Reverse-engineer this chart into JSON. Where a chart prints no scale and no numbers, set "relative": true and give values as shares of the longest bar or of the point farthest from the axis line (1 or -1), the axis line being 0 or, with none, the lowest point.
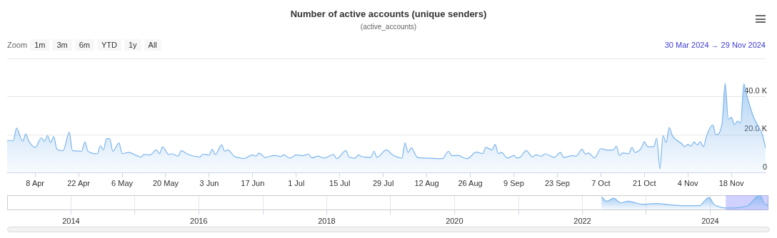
{
  "chart_data": [
    {
      "type": "area",
      "title": "Number of active accounts (unique senders)",
      "subtitle": "(active_accounts)",
      "annotations": [
        "Zoom",
        "1m",
        "3m",
        "6m",
        "YTD",
        "1y",
        "All",
        "30 Mar 2024 → 29 Nov 2024"
      ],
      "x": [
        "2024-03-30",
        "2024-04-01",
        "2024-04-02",
        "2024-04-04",
        "2024-04-05",
        "2024-04-06",
        "2024-04-08",
        "2024-04-10",
        "2024-04-11",
        "2024-04-12",
        "2024-04-13",
        "2024-04-14",
        "2024-04-15",
        "2024-04-17",
        "2024-04-19",
        "2024-04-20",
        "2024-04-23",
        "2024-04-24",
        "2024-04-25",
        "2024-04-28",
        "2024-04-29",
        "2024-04-30",
        "2024-05-01",
        "2024-05-02",
        "2024-05-03",
        "2024-05-05",
        "2024-05-06",
        "2024-05-08",
        "2024-05-12",
        "2024-05-13",
        "2024-05-15",
        "2024-05-17",
        "2024-05-18",
        "2024-05-19",
        "2024-05-21",
        "2024-05-22",
        "2024-05-24",
        "2024-05-25",
        "2024-05-27",
        "2024-05-31",
        "2024-06-01",
        "2024-06-03",
        "2024-06-04",
        "2024-06-05",
        "2024-06-07",
        "2024-06-08",
        "2024-06-09",
        "2024-06-11",
        "2024-06-13",
        "2024-06-14",
        "2024-06-17",
        "2024-06-18",
        "2024-06-19",
        "2024-06-21",
        "2024-06-24",
        "2024-06-26",
        "2024-06-27",
        "2024-06-29",
        "2024-07-01",
        "2024-07-03",
        "2024-07-05",
        "2024-07-06",
        "2024-07-08",
        "2024-07-10",
        "2024-07-13",
        "2024-07-14",
        "2024-07-17",
        "2024-07-18",
        "2024-07-20",
        "2024-07-21",
        "2024-07-22",
        "2024-07-25",
        "2024-07-26",
        "2024-07-27",
        "2024-07-30",
        "2024-08-01",
        "2024-08-04",
        "2024-08-05",
        "2024-08-06",
        "2024-08-07",
        "2024-08-09",
        "2024-08-12",
        "2024-08-17",
        "2024-08-19",
        "2024-08-20",
        "2024-08-22",
        "2024-08-25",
        "2024-08-28",
        "2024-08-30",
        "2024-08-31",
        "2024-09-02",
        "2024-09-03",
        "2024-09-04",
        "2024-09-05",
        "2024-09-07",
        "2024-09-09",
        "2024-09-10",
        "2024-09-11",
        "2024-09-13",
        "2024-09-15",
        "2024-09-16",
        "2024-09-18",
        "2024-09-19",
        "2024-09-22",
        "2024-09-24",
        "2024-09-25",
        "2024-09-28",
        "2024-09-29",
        "2024-10-01",
        "2024-10-02",
        "2024-10-03",
        "2024-10-05",
        "2024-10-07",
        "2024-10-09",
        "2024-10-11",
        "2024-10-12",
        "2024-10-13",
        "2024-10-14",
        "2024-10-16",
        "2024-10-17",
        "2024-10-18",
        "2024-10-20",
        "2024-10-21",
        "2024-10-22",
        "2024-10-24",
        "2024-10-25",
        "2024-10-26",
        "2024-10-27",
        "2024-10-28",
        "2024-10-29",
        "2024-10-30",
        "2024-11-02",
        "2024-11-03",
        "2024-11-04",
        "2024-11-05",
        "2024-11-06",
        "2024-11-07",
        "2024-11-08",
        "2024-11-09",
        "2024-11-10",
        "2024-11-12",
        "2024-11-13",
        "2024-11-15",
        "2024-11-16",
        "2024-11-17",
        "2024-11-18",
        "2024-11-19",
        "2024-11-20",
        "2024-11-21",
        "2024-11-22",
        "2024-11-23",
        "2024-11-25",
        "2024-11-27",
        "2024-11-28",
        "2024-11-29"
      ],
      "series": [
        {
          "color": "#7cb5ec",
          "values": [
            17000,
            17000,
            23500,
            16700,
            20400,
            16700,
            13400,
            18400,
            16700,
            19600,
            16000,
            19000,
            12500,
            11700,
            21300,
            11700,
            11400,
            16300,
            11400,
            10100,
            14300,
            12100,
            18000,
            18000,
            11400,
            15700,
            10100,
            10800,
            8400,
            9700,
            9500,
            12100,
            10100,
            13700,
            9700,
            10100,
            8800,
            11700,
            9900,
            8400,
            9900,
            9500,
            12400,
            9700,
            14700,
            11400,
            12100,
            8800,
            7900,
            7500,
            9500,
            8800,
            10400,
            8200,
            9200,
            8600,
            9500,
            7800,
            9500,
            9100,
            9900,
            7900,
            8800,
            7800,
            9700,
            7500,
            11700,
            8400,
            7800,
            9500,
            8600,
            8200,
            11400,
            8200,
            12100,
            9500,
            7800,
            15700,
            10800,
            13200,
            8200,
            7800,
            7500,
            11400,
            9100,
            9200,
            7500,
            11000,
            10100,
            13400,
            12100,
            15000,
            10100,
            10800,
            7800,
            9200,
            7900,
            8200,
            11700,
            8400,
            9500,
            8800,
            10100,
            8200,
            10800,
            8200,
            9100,
            8800,
            12500,
            9900,
            10500,
            7900,
            12800,
            12000,
            12100,
            14100,
            9200,
            10500,
            10100,
            13400,
            10800,
            13000,
            16400,
            13800,
            13800,
            18300,
            2200,
            19600,
            16000,
            23900,
            19600,
            15400,
            13800,
            15000,
            14100,
            16300,
            14700,
            16400,
            13800,
            19300,
            25300,
            20000,
            25900,
            47000,
            28200,
            29200,
            25300,
            27200,
            26200,
            46700,
            40400,
            29900,
            23300,
            20000,
            13000
          ]
        }
      ],
      "xlim": [
        "2024-03-30",
        "2024-11-29"
      ],
      "xticks": [
        {
          "value": "2024-04-08",
          "label": "8 Apr"
        },
        {
          "value": "2024-04-22",
          "label": "22 Apr"
        },
        {
          "value": "2024-05-06",
          "label": "6 May"
        },
        {
          "value": "2024-05-20",
          "label": "20 May"
        },
        {
          "value": "2024-06-03",
          "label": "3 Jun"
        },
        {
          "value": "2024-06-17",
          "label": "17 Jun"
        },
        {
          "value": "2024-07-01",
          "label": "1 Jul"
        },
        {
          "value": "2024-07-15",
          "label": "15 Jul"
        },
        {
          "value": "2024-07-29",
          "label": "29 Jul"
        },
        {
          "value": "2024-08-12",
          "label": "12 Aug"
        },
        {
          "value": "2024-08-26",
          "label": "26 Aug"
        },
        {
          "value": "2024-09-09",
          "label": "9 Sep"
        },
        {
          "value": "2024-09-23",
          "label": "23 Sep"
        },
        {
          "value": "2024-10-07",
          "label": "7 Oct"
        },
        {
          "value": "2024-10-21",
          "label": "21 Oct"
        },
        {
          "value": "2024-11-04",
          "label": "4 Nov"
        },
        {
          "value": "2024-11-18",
          "label": "18 Nov"
        }
      ],
      "ylim": [
        0,
        60000
      ],
      "yticks": [
        {
          "value": 0,
          "label": "0"
        },
        {
          "value": 20000,
          "label": "20.0 K"
        },
        {
          "value": 40000,
          "label": "40.0 K"
        },
        {
          "value": 60000,
          "label": null
        }
      ],
      "grid": "y",
      "legend": false,
      "marker": "none"
    },
    {
      "type": "area",
      "relative": true,
      "x": [
        "2022-04-20",
        "2022-05-20",
        "2022-06-28",
        "2022-08-08",
        "2022-09-20",
        "2022-12-10",
        "2023-03-01",
        "2023-05-22",
        "2023-08-10",
        "2023-10-30",
        "2023-12-25",
        "2024-01-22",
        "2024-03-01",
        "2024-04-12",
        "2024-07-01",
        "2024-08-10",
        "2024-09-23",
        "2024-10-12",
        "2024-11-03",
        "2024-11-29"
      ],
      "series": [
        {
          "color": "#7cb5ec",
          "values": [
            0.9,
            0.6,
            0.8,
            0.5,
            0.6,
            0.4,
            0.45,
            0.35,
            0.3,
            0.3,
            0.85,
            0.4,
            0.2,
            0.15,
            0.2,
            0.35,
            0.9,
            1,
            0.5,
            0.3
          ]
        }
      ],
      "xlim": [
        "2013-01-01",
        "2024-11-29"
      ],
      "xticks": [
        {
          "value": "2014-01-01",
          "label": "2014"
        },
        {
          "value": "2015-01-01",
          "label": null
        },
        {
          "value": "2016-01-01",
          "label": "2016"
        },
        {
          "value": "2017-01-01",
          "label": null
        },
        {
          "value": "2018-01-01",
          "label": "2018"
        },
        {
          "value": "2019-01-01",
          "label": null
        },
        {
          "value": "2020-01-01",
          "label": "2020"
        },
        {
          "value": "2021-01-01",
          "label": null
        },
        {
          "value": "2022-01-01",
          "label": "2022"
        },
        {
          "value": "2023-01-01",
          "label": null
        },
        {
          "value": "2024-01-01",
          "label": "2024"
        }
      ],
      "bands": [
        {
          "axis": "x",
          "from": "2024-03-30",
          "to": "2024-11-29",
          "color": "#6666ff"
        }
      ],
      "grid": "x",
      "legend": false,
      "marker": "none",
      "tick_labels": "x"
    }
  ]
}
